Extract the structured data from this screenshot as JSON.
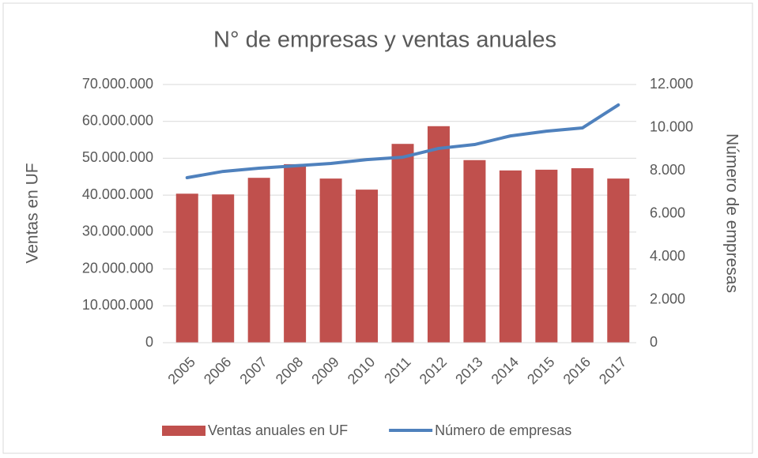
{
  "chart_data": {
    "type": "bar",
    "title": "N° de empresas y ventas anuales",
    "y_label": "Ventas en UF",
    "y2_label": "Número de empresas",
    "categories": [
      "2005",
      "2006",
      "2007",
      "2008",
      "2009",
      "2010",
      "2011",
      "2012",
      "2013",
      "2014",
      "2015",
      "2016",
      "2017"
    ],
    "series": [
      {
        "name": "Ventas anuales en UF",
        "type": "bar",
        "color": "#c0504d",
        "values": [
          40400000,
          40200000,
          44700000,
          48400000,
          44500000,
          41500000,
          53900000,
          58700000,
          49500000,
          46700000,
          46900000,
          47300000,
          44500000
        ]
      },
      {
        "name": "Número de empresas",
        "type": "line",
        "axis": "y2",
        "color": "#4f81bd",
        "values": [
          7670,
          7960,
          8110,
          8220,
          8330,
          8510,
          8620,
          9030,
          9210,
          9610,
          9830,
          9980,
          11050
        ]
      }
    ],
    "ylim": [
      0,
      70000000
    ],
    "yticks": [
      0,
      {
        "value": 10000000,
        "label": "10.000.000"
      },
      {
        "value": 20000000,
        "label": "20.000.000"
      },
      {
        "value": 30000000,
        "label": "30.000.000"
      },
      {
        "value": 40000000,
        "label": "40.000.000"
      },
      {
        "value": 50000000,
        "label": "50.000.000"
      },
      {
        "value": 60000000,
        "label": "60.000.000"
      },
      {
        "value": 70000000,
        "label": "70.000.000"
      }
    ],
    "y2lim": [
      0,
      12000
    ],
    "y2ticks": [
      0,
      {
        "value": 2000,
        "label": "2.000"
      },
      {
        "value": 4000,
        "label": "4.000"
      },
      {
        "value": 6000,
        "label": "6.000"
      },
      {
        "value": 8000,
        "label": "8.000"
      },
      {
        "value": 10000,
        "label": "10.000"
      },
      {
        "value": 12000,
        "label": "12.000"
      }
    ],
    "grid": true,
    "legend": "bottom"
  }
}
